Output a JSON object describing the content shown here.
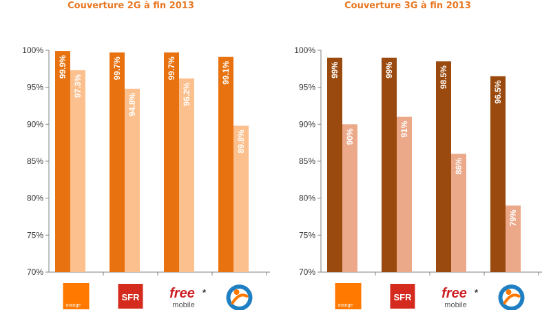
{
  "colors": {
    "orange_dark": "#e8720f",
    "orange_light": "#fbc08d",
    "brown_dark": "#9a4a0e",
    "brown_light": "#eba98a",
    "title": "#e87722",
    "axis": "#808080",
    "gridline": "#cfcfcf",
    "orange_brand": "#ff7900",
    "sfr_red": "#d52b1e",
    "free_red": "#cd1e25",
    "bouygues_blue": "#1f7fc3"
  },
  "logos": [
    {
      "name": "orange-logo",
      "text": "orange"
    },
    {
      "name": "sfr-logo",
      "text": "SFR"
    },
    {
      "name": "free-mobile-logo",
      "text_top": "free",
      "text_bottom": "mobile",
      "asterisk": "*"
    },
    {
      "name": "bouygues-telecom-logo",
      "text": ""
    }
  ],
  "chart_data": [
    {
      "type": "bar",
      "title": "Couverture 2G à fin 2013",
      "ylim": [
        70,
        100
      ],
      "yticks": [
        "70%",
        "75%",
        "80%",
        "85%",
        "90%",
        "95%",
        "100%"
      ],
      "ytick_values": [
        70,
        75,
        80,
        85,
        90,
        95,
        100
      ],
      "grid": false,
      "categories": [
        "Orange",
        "SFR",
        "Free Mobile",
        "Bouygues Telecom"
      ],
      "series": [
        {
          "values": [
            99.9,
            99.7,
            99.7,
            99.1
          ],
          "labels": [
            "99.9%",
            "99.7%",
            "99.7%",
            "99.1%"
          ],
          "color": "#e8720f"
        },
        {
          "values": [
            97.3,
            94.8,
            96.2,
            89.8
          ],
          "labels": [
            "97.3%",
            "94.8%",
            "96.2%",
            "89.8%"
          ],
          "color": "#fbc08d"
        }
      ]
    },
    {
      "type": "bar",
      "title": "Couverture 3G à fin 2013",
      "ylim": [
        70,
        100
      ],
      "yticks": [
        "70%",
        "75%",
        "80%",
        "85%",
        "90%",
        "95%",
        "100%"
      ],
      "ytick_values": [
        70,
        75,
        80,
        85,
        90,
        95,
        100
      ],
      "grid": false,
      "categories": [
        "Orange",
        "SFR",
        "Free Mobile",
        "Bouygues Telecom"
      ],
      "series": [
        {
          "values": [
            99,
            99,
            98.5,
            96.5
          ],
          "labels": [
            "99%",
            "99%",
            "98.5%",
            "96.5%"
          ],
          "color": "#9a4a0e"
        },
        {
          "values": [
            90,
            91,
            86,
            79
          ],
          "labels": [
            "90%",
            "91%",
            "86%",
            "79%"
          ],
          "color": "#eba98a"
        }
      ]
    }
  ]
}
